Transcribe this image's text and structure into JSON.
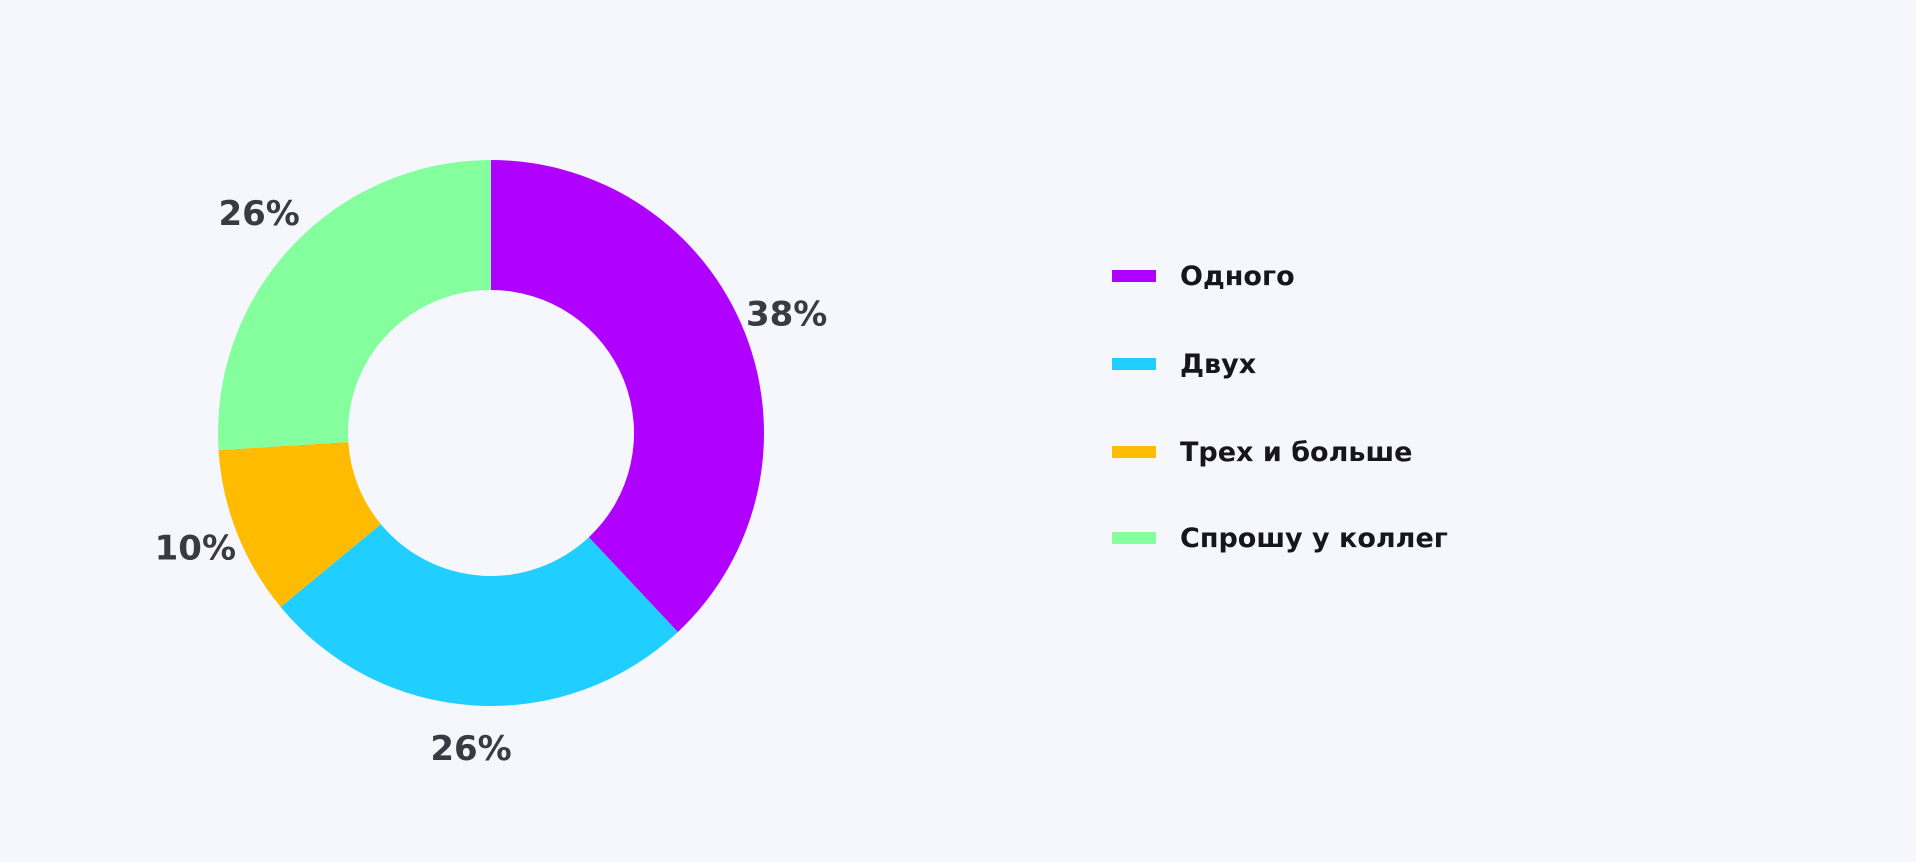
{
  "chart_data": {
    "type": "pie",
    "categories": [
      "Одного",
      "Двух",
      "Трех и больше",
      "Спрошу у коллег"
    ],
    "values": [
      38,
      26,
      10,
      26
    ],
    "value_labels": [
      "38%",
      "26%",
      "10%",
      "26%"
    ],
    "colors": [
      "#b000ff",
      "#20cfff",
      "#ffbb00",
      "#85ff9e"
    ],
    "donut": true,
    "legend": "right"
  }
}
